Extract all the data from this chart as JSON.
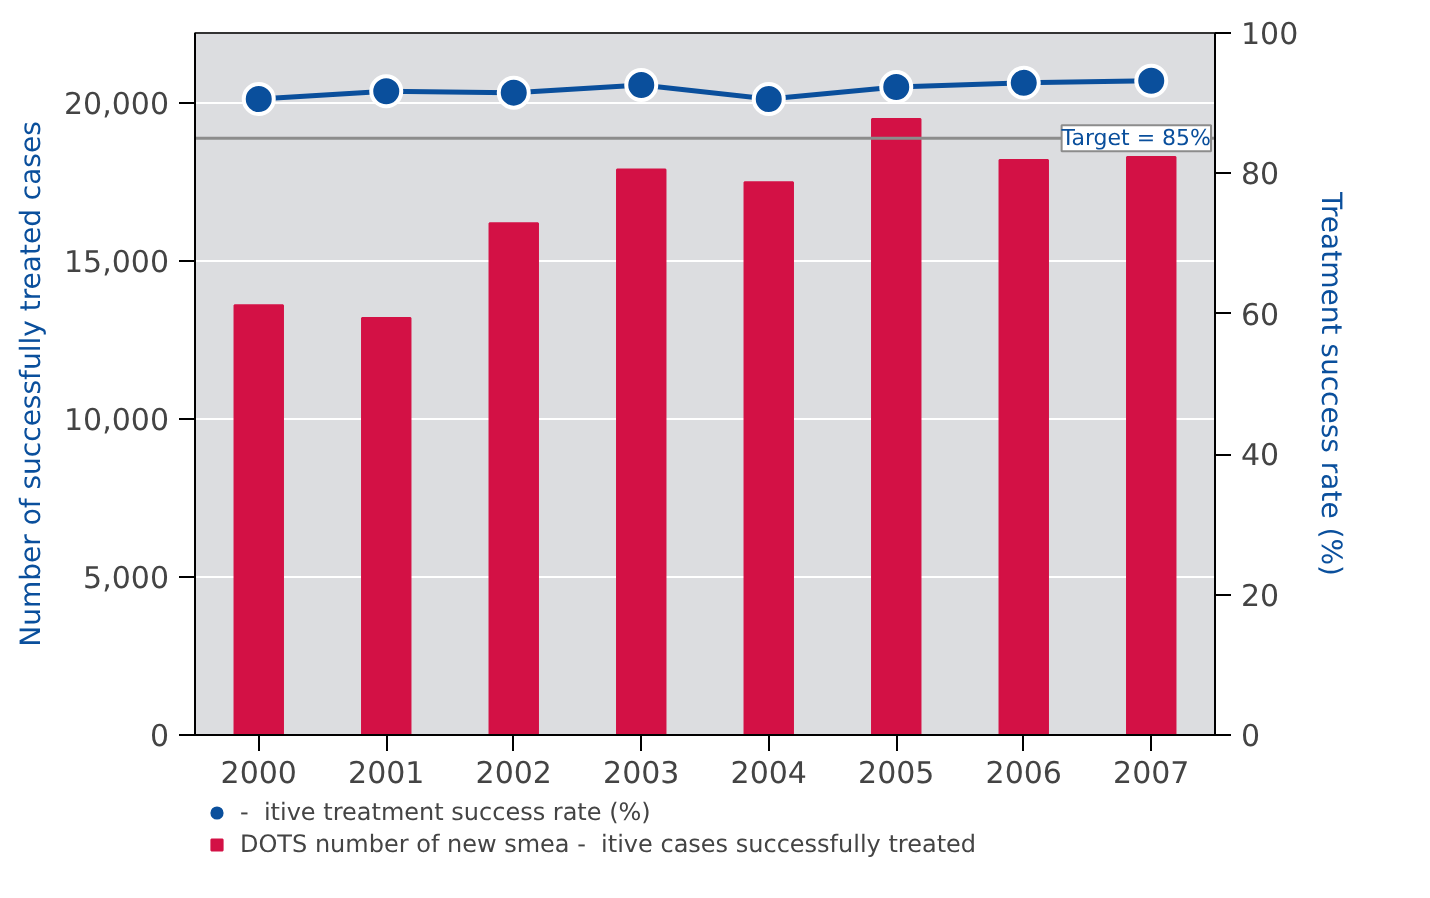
{
  "chart_data": {
    "type": "bar",
    "categories": [
      "2000",
      "2001",
      "2002",
      "2003",
      "2004",
      "2005",
      "2006",
      "2007"
    ],
    "ylabel": "Number of successfully treated cases",
    "y2label": "Treatment success rate (%)",
    "ylim": [
      0,
      22222
    ],
    "yticks": [
      0,
      {
        "value": 5000,
        "label": "5,000"
      },
      {
        "value": 10000,
        "label": "10,000"
      },
      {
        "value": 15000,
        "label": "15,000"
      },
      {
        "value": 20000,
        "label": "20,000"
      }
    ],
    "y2lim": [
      0,
      100
    ],
    "y2ticks": [
      0,
      20,
      40,
      60,
      80,
      100
    ],
    "series": [
      {
        "name": "-  itive treatment success rate (%)",
        "type": "line",
        "axis": "y2",
        "color": "#0a4f9c",
        "marker": "circle",
        "values": [
          90.6,
          91.7,
          91.5,
          92.6,
          90.6,
          92.3,
          92.9,
          93.2
        ]
      },
      {
        "name": "DOTS number of new smea -  itive cases successfully treated",
        "type": "bar",
        "color": "#d31145",
        "values": [
          13600,
          13200,
          16200,
          17900,
          17500,
          19500,
          18200,
          18300
        ]
      }
    ],
    "ref_lines": [
      {
        "axis": "y2",
        "value": 85,
        "label": "Target = 85%",
        "color": "#8c8c8c"
      }
    ],
    "grid": "y",
    "legend": "bottom left"
  }
}
